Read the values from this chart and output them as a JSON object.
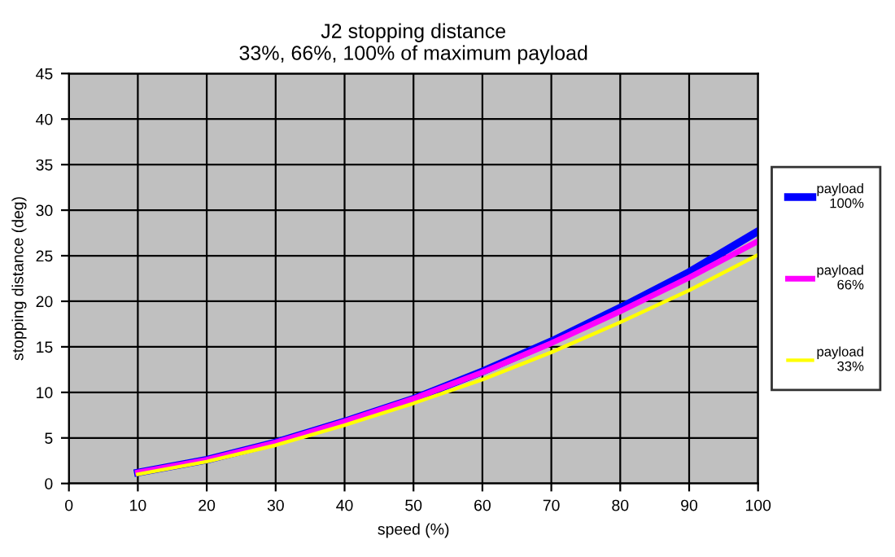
{
  "chart_data": {
    "type": "line",
    "title": "J2 stopping distance\n33%, 66%, 100% of maximum payload",
    "xlabel": "speed (%)",
    "ylabel": "stopping distance (deg)",
    "x": [
      10,
      20,
      30,
      40,
      50,
      60,
      70,
      80,
      90,
      100
    ],
    "series": [
      {
        "name": "payload\n100%",
        "color": "#0000ff",
        "values": [
          1.2,
          2.6,
          4.5,
          6.8,
          9.3,
          12.3,
          15.6,
          19.3,
          23.2,
          27.7
        ]
      },
      {
        "name": "payload\n66%",
        "color": "#ff00ff",
        "values": [
          1.2,
          2.6,
          4.5,
          6.8,
          9.3,
          12.2,
          15.4,
          18.9,
          22.6,
          26.6
        ]
      },
      {
        "name": "payload\n33%",
        "color": "#ffff00",
        "values": [
          1.0,
          2.4,
          4.2,
          6.4,
          8.8,
          11.4,
          14.4,
          17.7,
          21.2,
          25.1
        ]
      }
    ],
    "xlim": [
      0,
      100
    ],
    "xticks": [
      0,
      10,
      20,
      30,
      40,
      50,
      60,
      70,
      80,
      90,
      100
    ],
    "ylim": [
      0,
      45
    ],
    "yticks": [
      0,
      5,
      10,
      15,
      20,
      25,
      30,
      35,
      40,
      45
    ],
    "grid": true,
    "legend": "right",
    "marker": "none",
    "line_style": "solid"
  }
}
